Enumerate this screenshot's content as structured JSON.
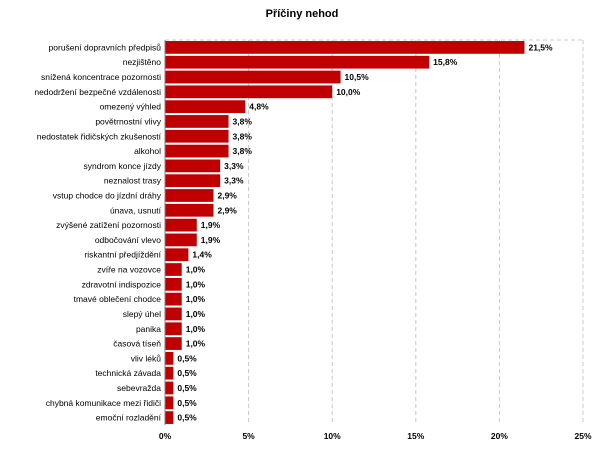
{
  "chart_data": {
    "type": "bar",
    "orientation": "horizontal",
    "title": "Příčiny nehod",
    "xlabel": "",
    "ylabel": "",
    "xlim": [
      0,
      25
    ],
    "x_ticks": [
      "0%",
      "5%",
      "10%",
      "15%",
      "20%",
      "25%"
    ],
    "grid": true,
    "bar_color": "#c00000",
    "categories": [
      "porušení dopravních předpisů",
      "nezjištěno",
      "snížená koncentrace pozornosti",
      "nedodržení bezpečné vzdálenosti",
      "omezený výhled",
      "povětrnostní vlivy",
      "nedostatek řidičských zkušeností",
      "alkohol",
      "syndrom konce jízdy",
      "neznalost trasy",
      "vstup chodce do jízdní dráhy",
      "únava, usnutí",
      "zvýšené zatížení pozornosti",
      "odbočování vlevo",
      "riskantní předjíždění",
      "zvíře na vozovce",
      "zdravotní indispozice",
      "tmavé oblečení chodce",
      "slepý úhel",
      "panika",
      "časová tíseň",
      "vliv léků",
      "technická závada",
      "sebevražda",
      "chybná komunikace mezi řidiči",
      "emoční rozladění"
    ],
    "values": [
      21.5,
      15.8,
      10.5,
      10.0,
      4.8,
      3.8,
      3.8,
      3.8,
      3.3,
      3.3,
      2.9,
      2.9,
      1.9,
      1.9,
      1.4,
      1.0,
      1.0,
      1.0,
      1.0,
      1.0,
      1.0,
      0.5,
      0.5,
      0.5,
      0.5,
      0.5
    ],
    "value_labels": [
      "21,5%",
      "15,8%",
      "10,5%",
      "10,0%",
      "4,8%",
      "3,8%",
      "3,8%",
      "3,8%",
      "3,3%",
      "3,3%",
      "2,9%",
      "2,9%",
      "1,9%",
      "1,9%",
      "1,4%",
      "1,0%",
      "1,0%",
      "1,0%",
      "1,0%",
      "1,0%",
      "1,0%",
      "0,5%",
      "0,5%",
      "0,5%",
      "0,5%",
      "0,5%"
    ]
  }
}
